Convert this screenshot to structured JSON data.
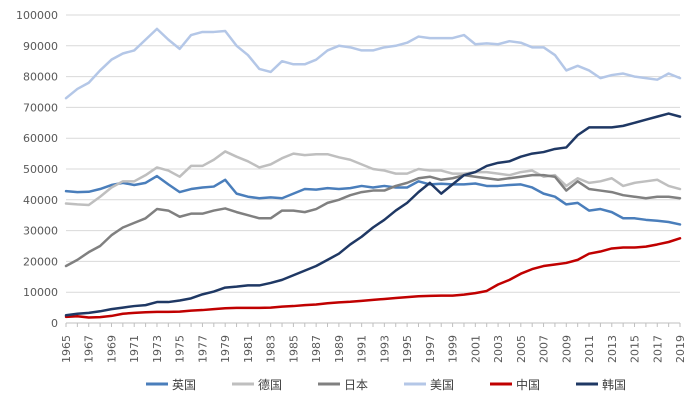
{
  "chart_data": {
    "type": "line",
    "title": "",
    "xlabel": "",
    "ylabel": "",
    "ylim": [
      0,
      100000
    ],
    "yticks": [
      0,
      10000,
      20000,
      30000,
      40000,
      50000,
      60000,
      70000,
      80000,
      90000,
      100000
    ],
    "ytick_labels": [
      "0",
      "10000",
      "20000",
      "30000",
      "40000",
      "50000",
      "60000",
      "70000",
      "80000",
      "90000",
      "100000"
    ],
    "x": [
      1965,
      1966,
      1967,
      1968,
      1969,
      1970,
      1971,
      1972,
      1973,
      1974,
      1975,
      1976,
      1977,
      1978,
      1979,
      1980,
      1981,
      1982,
      1983,
      1984,
      1985,
      1986,
      1987,
      1988,
      1989,
      1990,
      1991,
      1992,
      1993,
      1994,
      1995,
      1996,
      1997,
      1998,
      1999,
      2000,
      2001,
      2002,
      2003,
      2004,
      2005,
      2006,
      2007,
      2008,
      2009,
      2010,
      2011,
      2012,
      2013,
      2014,
      2015,
      2016,
      2017,
      2018,
      2019
    ],
    "xtick_labels": [
      "1965",
      "1967",
      "1969",
      "1971",
      "1973",
      "1975",
      "1977",
      "1979",
      "1981",
      "1983",
      "1985",
      "1987",
      "1989",
      "1991",
      "1993",
      "1995",
      "1997",
      "1999",
      "2001",
      "2003",
      "2005",
      "2007",
      "2009",
      "2011",
      "2013",
      "2015",
      "2017",
      "2019"
    ],
    "grid": "horizontal",
    "legend_position": "bottom",
    "series": [
      {
        "name": "英国",
        "color": "#4a7ebb",
        "values": [
          42800,
          42500,
          42600,
          43500,
          44800,
          45500,
          44800,
          45500,
          47700,
          45000,
          42500,
          43500,
          44000,
          44300,
          46500,
          42000,
          41000,
          40500,
          40800,
          40500,
          42000,
          43500,
          43300,
          43800,
          43500,
          43800,
          44500,
          44000,
          44500,
          44000,
          44000,
          46000,
          45000,
          45200,
          45000,
          45000,
          45300,
          44500,
          44500,
          44800,
          45000,
          44000,
          42000,
          41000,
          38500,
          39000,
          36500,
          37000,
          36000,
          34000,
          34000,
          33500,
          33200,
          32800,
          32000
        ]
      },
      {
        "name": "德国",
        "color": "#bfbfbf",
        "values": [
          38800,
          38500,
          38300,
          41000,
          44000,
          46000,
          46000,
          48000,
          50500,
          49500,
          47500,
          51000,
          51000,
          53000,
          55700,
          54000,
          52500,
          50500,
          51500,
          53500,
          55000,
          54500,
          54800,
          54800,
          53800,
          53000,
          51500,
          50000,
          49500,
          48500,
          48500,
          50000,
          49500,
          49500,
          48500,
          48500,
          49000,
          49000,
          48500,
          48000,
          49000,
          49500,
          47500,
          48000,
          44500,
          47000,
          45500,
          46000,
          47000,
          44500,
          45500,
          46000,
          46500,
          44500,
          43500
        ]
      },
      {
        "name": "日本",
        "color": "#808080",
        "values": [
          18500,
          20500,
          23000,
          25000,
          28500,
          31000,
          32500,
          34000,
          37000,
          36500,
          34500,
          35500,
          35500,
          36500,
          37200,
          36000,
          35000,
          34000,
          34000,
          36500,
          36500,
          36000,
          37000,
          39000,
          40000,
          41500,
          42500,
          43000,
          43000,
          44500,
          45500,
          47000,
          47500,
          46500,
          47000,
          48000,
          47500,
          47000,
          46500,
          47000,
          47500,
          48000,
          48000,
          47500,
          43000,
          46000,
          43500,
          43000,
          42500,
          41500,
          41000,
          40500,
          41000,
          41000,
          40500
        ]
      },
      {
        "name": "美国",
        "color": "#b4c7e7",
        "values": [
          73000,
          76000,
          78000,
          82000,
          85500,
          87500,
          88500,
          92000,
          95500,
          92000,
          89000,
          93500,
          94500,
          94500,
          94800,
          90000,
          87000,
          82500,
          81500,
          85000,
          84000,
          84000,
          85500,
          88500,
          90000,
          89500,
          88500,
          88500,
          89500,
          90000,
          91000,
          93000,
          92500,
          92500,
          92500,
          93500,
          90500,
          90800,
          90500,
          91500,
          91000,
          89500,
          89500,
          87000,
          82000,
          83500,
          82000,
          79500,
          80500,
          81000,
          80000,
          79500,
          79000,
          81000,
          79500
        ]
      },
      {
        "name": "中国",
        "color": "#c00000",
        "values": [
          2000,
          2200,
          1800,
          1900,
          2300,
          3000,
          3300,
          3500,
          3600,
          3600,
          3700,
          4000,
          4200,
          4500,
          4800,
          4900,
          4900,
          4900,
          5000,
          5300,
          5500,
          5800,
          6000,
          6400,
          6700,
          6900,
          7200,
          7500,
          7800,
          8100,
          8400,
          8700,
          8800,
          8900,
          8900,
          9200,
          9700,
          10400,
          12500,
          14000,
          16000,
          17500,
          18500,
          19000,
          19500,
          20500,
          22500,
          23200,
          24200,
          24500,
          24500,
          24800,
          25500,
          26300,
          27500
        ]
      },
      {
        "name": "韩国",
        "color": "#1f3864",
        "values": [
          2500,
          3000,
          3300,
          3800,
          4500,
          5000,
          5500,
          5800,
          6800,
          6800,
          7300,
          8000,
          9300,
          10200,
          11500,
          11800,
          12200,
          12200,
          13000,
          14000,
          15500,
          17000,
          18500,
          20500,
          22500,
          25500,
          28000,
          31000,
          33500,
          36500,
          39000,
          42500,
          45500,
          42000,
          45000,
          48000,
          49000,
          51000,
          52000,
          52500,
          54000,
          55000,
          55500,
          56500,
          57000,
          61000,
          63500,
          63500,
          63500,
          64000,
          65000,
          66000,
          67000,
          68000,
          67000
        ]
      }
    ]
  }
}
